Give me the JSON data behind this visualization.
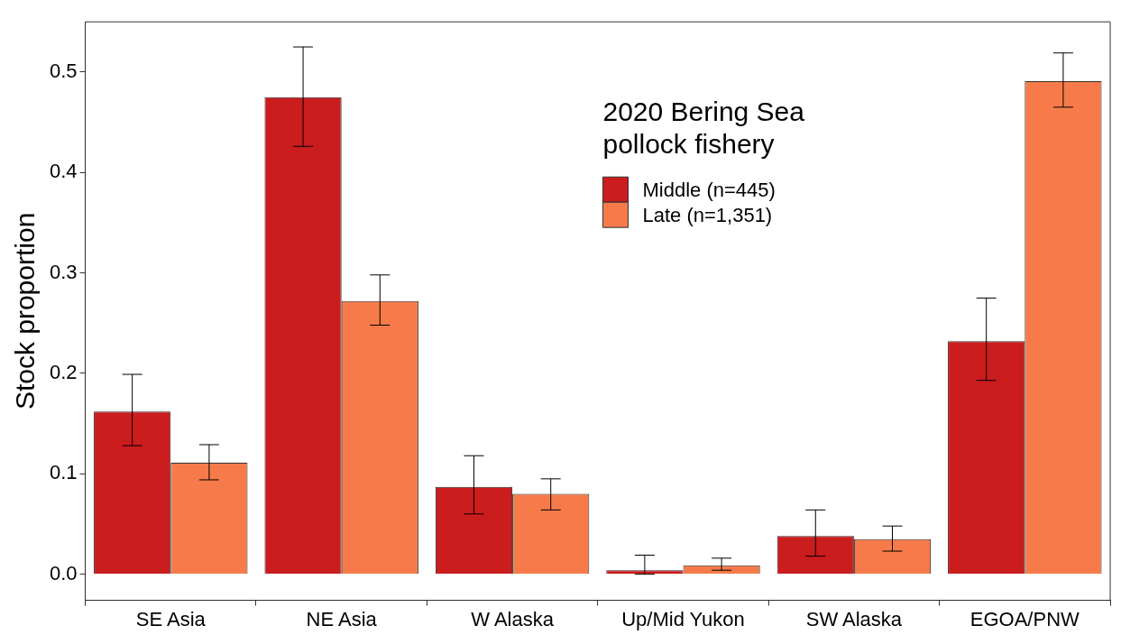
{
  "chart_data": {
    "type": "bar",
    "ylabel": "Stock proportion",
    "legend_title": "2020 Bering Sea pollock fishery",
    "legend": "top",
    "categories": [
      "SE Asia",
      "NE Asia",
      "W Alaska",
      "Up/Mid Yukon",
      "SW Alaska",
      "EGOA/PNW"
    ],
    "series": [
      {
        "name": "Middle (n=445)",
        "color": "#cb1c1e",
        "values": [
          0.162,
          0.475,
          0.087,
          0.004,
          0.038,
          0.232
        ],
        "errors": [
          [
            0.128,
            0.199
          ],
          [
            0.426,
            0.525
          ],
          [
            0.06,
            0.118
          ],
          [
            0.0,
            0.019
          ],
          [
            0.018,
            0.064
          ],
          [
            0.193,
            0.275
          ]
        ]
      },
      {
        "name": "Late (n=1,351)",
        "color": "#f77b4a",
        "values": [
          0.111,
          0.272,
          0.08,
          0.009,
          0.035,
          0.491
        ],
        "errors": [
          [
            0.094,
            0.129
          ],
          [
            0.248,
            0.298
          ],
          [
            0.064,
            0.095
          ],
          [
            0.004,
            0.016
          ],
          [
            0.023,
            0.048
          ],
          [
            0.465,
            0.519
          ]
        ]
      }
    ],
    "ylim": [
      -0.026,
      0.55
    ],
    "yticks": [
      {
        "value": 0,
        "label": "0.0"
      },
      0.1,
      0.2,
      0.3,
      0.4,
      0.5
    ]
  }
}
